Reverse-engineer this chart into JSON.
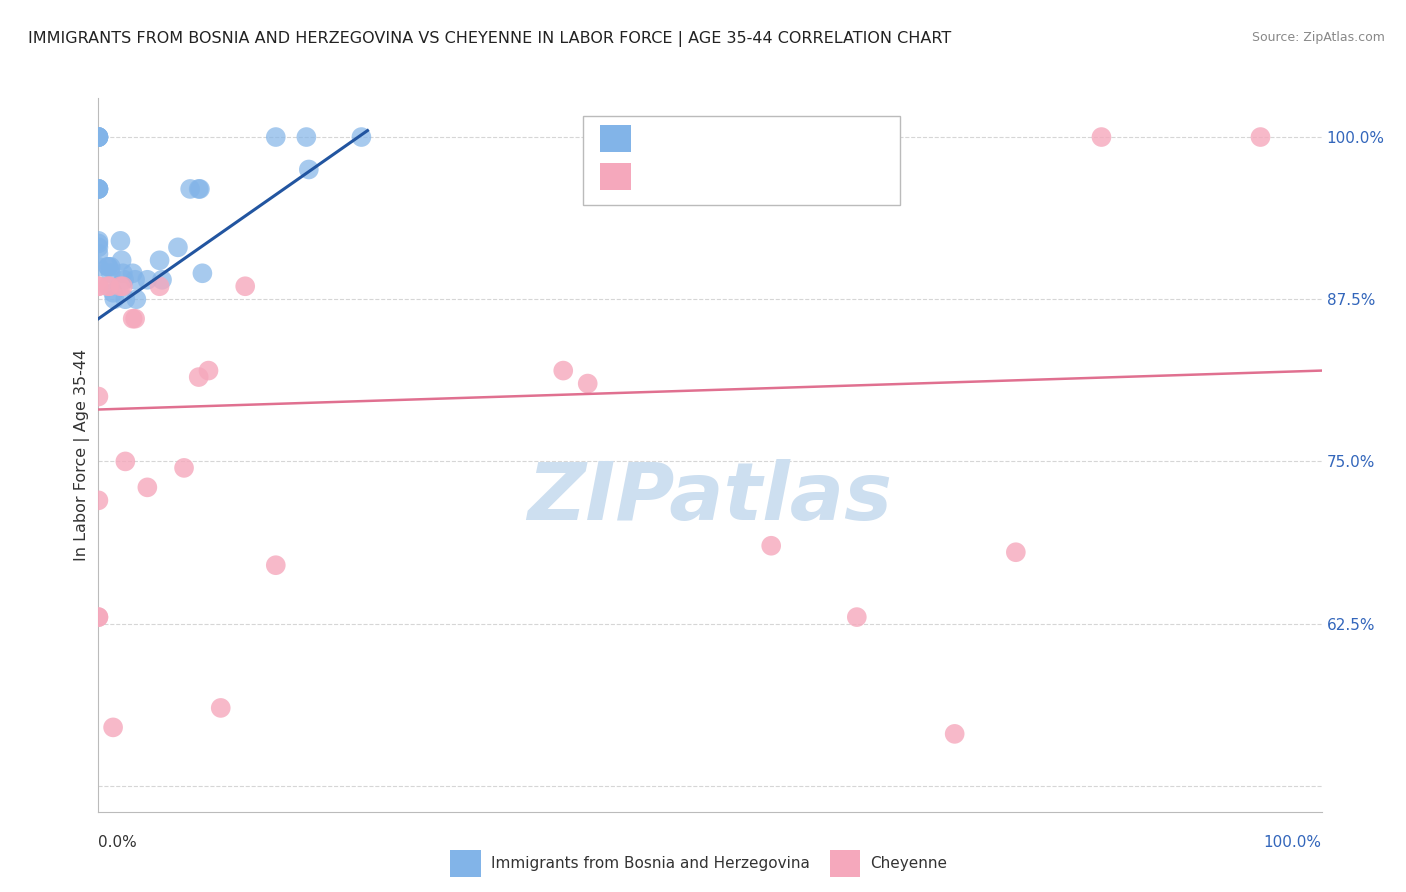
{
  "title": "IMMIGRANTS FROM BOSNIA AND HERZEGOVINA VS CHEYENNE IN LABOR FORCE | AGE 35-44 CORRELATION CHART",
  "source": "Source: ZipAtlas.com",
  "ylabel": "In Labor Force | Age 35-44",
  "legend_label_blue": "Immigrants from Bosnia and Herzegovina",
  "legend_label_pink": "Cheyenne",
  "blue_color": "#82b4e8",
  "pink_color": "#f5a8bc",
  "blue_line_color": "#2255a0",
  "pink_line_color": "#e07090",
  "legend_r_color": "#3366bb",
  "watermark": "ZIPatlas",
  "watermark_color": "#cddff0",
  "background_color": "#ffffff",
  "grid_color": "#cccccc",
  "blue_x": [
    0.0,
    0.0,
    0.0,
    0.0,
    0.0,
    0.0,
    0.0,
    0.0,
    0.0,
    0.0,
    0.0,
    0.0,
    0.0,
    0.0,
    0.008,
    0.008,
    0.01,
    0.01,
    0.012,
    0.013,
    0.018,
    0.019,
    0.02,
    0.021,
    0.022,
    0.028,
    0.03,
    0.031,
    0.04,
    0.05,
    0.052,
    0.065,
    0.075,
    0.082,
    0.083,
    0.085,
    0.145,
    0.17,
    0.172,
    0.215
  ],
  "blue_y": [
    1.0,
    1.0,
    1.0,
    1.0,
    1.0,
    0.96,
    0.96,
    0.96,
    0.96,
    0.92,
    0.918,
    0.915,
    0.91,
    0.9,
    0.9,
    0.9,
    0.9,
    0.895,
    0.88,
    0.875,
    0.92,
    0.905,
    0.895,
    0.89,
    0.875,
    0.895,
    0.89,
    0.875,
    0.89,
    0.905,
    0.89,
    0.915,
    0.96,
    0.96,
    0.96,
    0.895,
    1.0,
    1.0,
    0.975,
    1.0
  ],
  "pink_x": [
    0.0,
    0.0,
    0.0,
    0.0,
    0.0,
    0.0,
    0.008,
    0.009,
    0.012,
    0.018,
    0.02,
    0.022,
    0.028,
    0.03,
    0.04,
    0.05,
    0.07,
    0.082,
    0.09,
    0.1,
    0.12,
    0.145,
    0.38,
    0.4,
    0.55,
    0.62,
    0.7,
    0.75,
    0.82,
    0.95
  ],
  "pink_y": [
    0.885,
    0.885,
    0.8,
    0.72,
    0.63,
    0.63,
    0.885,
    0.885,
    0.545,
    0.885,
    0.885,
    0.75,
    0.86,
    0.86,
    0.73,
    0.885,
    0.745,
    0.815,
    0.82,
    0.56,
    0.885,
    0.67,
    0.82,
    0.81,
    0.685,
    0.63,
    0.54,
    0.68,
    1.0,
    1.0
  ],
  "xlim": [
    0.0,
    1.0
  ],
  "ylim": [
    0.48,
    1.03
  ],
  "blue_trend_x0": 0.0,
  "blue_trend_y0": 0.86,
  "blue_trend_x1": 0.22,
  "blue_trend_y1": 1.005,
  "pink_trend_x0": 0.0,
  "pink_trend_y0": 0.79,
  "pink_trend_x1": 1.0,
  "pink_trend_y1": 0.82,
  "yticks": [
    0.5,
    0.625,
    0.75,
    0.875,
    1.0
  ],
  "ytick_labels": [
    "",
    "62.5%",
    "75.0%",
    "87.5%",
    "100.0%"
  ]
}
